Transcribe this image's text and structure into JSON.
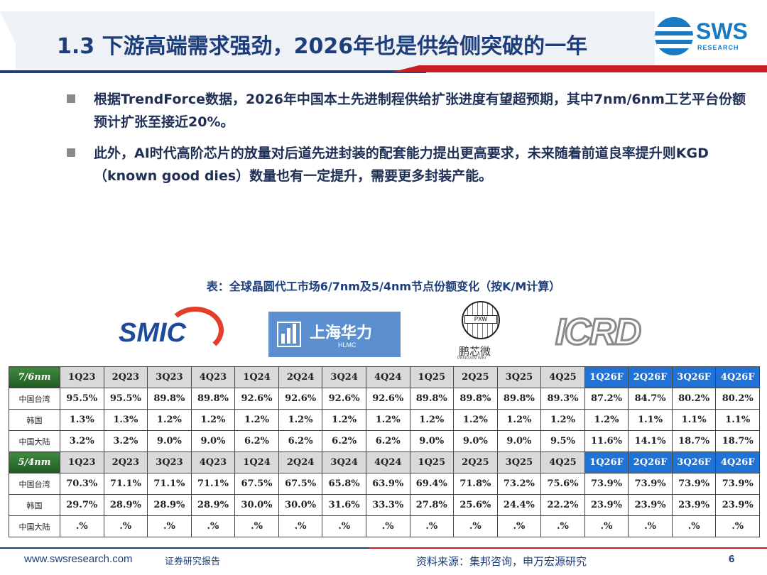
{
  "header": {
    "title": "1.3 下游高端需求强劲，2026年也是供给侧突破的一年",
    "logo_text": "SWS",
    "logo_sub": "RESEARCH"
  },
  "bullets": [
    "根据TrendForce数据，2026年中国本土先进制程供给扩张进度有望超预期，其中7nm/6nm工艺平台份额预计扩张至接近20%。",
    "此外，AI时代高阶芯片的放量对后道先进封装的配套能力提出更高要求，未来随着前道良率提升则KGD（known good dies）数量也有一定提升，需要更多封装产能。"
  ],
  "table_caption": "表：全球晶圆代工市场6/7nm及5/4nm节点份额变化（按K/M计算）",
  "partner_logos": {
    "smic": "SMIC",
    "hlmc_name": "上海华力",
    "hlmc_sub": "HLMC",
    "pxw_label": "PXW",
    "pxw_name": "鹏芯微",
    "pxw_sub": "PENGXIN WEI",
    "icrd": "ICRD"
  },
  "table": {
    "groups": [
      {
        "label": "7/6nm",
        "columns": [
          "1Q23",
          "2Q23",
          "3Q23",
          "4Q23",
          "1Q24",
          "2Q24",
          "3Q24",
          "4Q24",
          "1Q25",
          "2Q25",
          "3Q25",
          "4Q25",
          "1Q26F",
          "2Q26F",
          "3Q26F",
          "4Q26F"
        ],
        "rows": [
          {
            "label": "中国台湾",
            "values": [
              "95.5%",
              "95.5%",
              "89.8%",
              "89.8%",
              "92.6%",
              "92.6%",
              "92.6%",
              "92.6%",
              "89.8%",
              "89.8%",
              "89.8%",
              "89.3%",
              "87.2%",
              "84.7%",
              "80.2%",
              "80.2%"
            ]
          },
          {
            "label": "韩国",
            "values": [
              "1.3%",
              "1.3%",
              "1.2%",
              "1.2%",
              "1.2%",
              "1.2%",
              "1.2%",
              "1.2%",
              "1.2%",
              "1.2%",
              "1.2%",
              "1.2%",
              "1.2%",
              "1.1%",
              "1.1%",
              "1.1%"
            ]
          },
          {
            "label": "中国大陆",
            "values": [
              "3.2%",
              "3.2%",
              "9.0%",
              "9.0%",
              "6.2%",
              "6.2%",
              "6.2%",
              "6.2%",
              "9.0%",
              "9.0%",
              "9.0%",
              "9.5%",
              "11.6%",
              "14.1%",
              "18.7%",
              "18.7%"
            ]
          }
        ]
      },
      {
        "label": "5/4nm",
        "columns": [
          "1Q23",
          "2Q23",
          "3Q23",
          "4Q23",
          "1Q24",
          "2Q24",
          "3Q24",
          "4Q24",
          "1Q25",
          "2Q25",
          "3Q25",
          "4Q25",
          "1Q26F",
          "2Q26F",
          "3Q26F",
          "4Q26F"
        ],
        "rows": [
          {
            "label": "中国台湾",
            "values": [
              "70.3%",
              "71.1%",
              "71.1%",
              "71.1%",
              "67.5%",
              "67.5%",
              "65.8%",
              "63.9%",
              "69.4%",
              "71.8%",
              "73.2%",
              "75.6%",
              "73.9%",
              "73.9%",
              "73.9%",
              "73.9%"
            ]
          },
          {
            "label": "韩国",
            "values": [
              "29.7%",
              "28.9%",
              "28.9%",
              "28.9%",
              "30.0%",
              "30.0%",
              "31.6%",
              "33.3%",
              "27.8%",
              "25.6%",
              "24.4%",
              "22.2%",
              "23.9%",
              "23.9%",
              "23.9%",
              "23.9%"
            ]
          },
          {
            "label": "中国大陆",
            "values": [
              ".%",
              ".%",
              ".%",
              ".%",
              ".%",
              ".%",
              ".%",
              ".%",
              ".%",
              ".%",
              ".%",
              ".%",
              ".%",
              ".%",
              ".%",
              ".%"
            ]
          }
        ]
      }
    ],
    "forecast_color": "#1f72d6",
    "group_color": "#2b6b2b"
  },
  "footer": {
    "url": "www.swsresearch.com",
    "report_label": "证券研究报告",
    "source": "资料来源：集邦咨询，申万宏源研究",
    "page_number": "6"
  }
}
